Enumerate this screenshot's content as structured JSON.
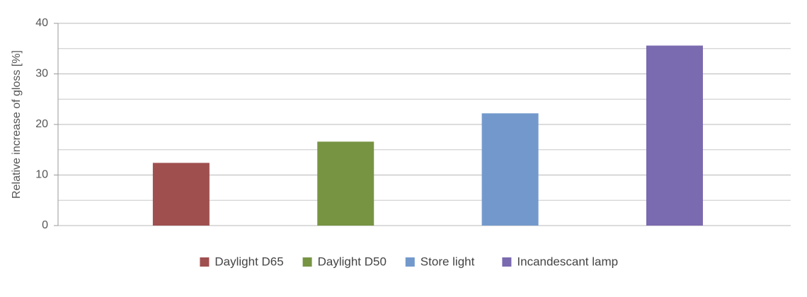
{
  "chart_data": {
    "type": "bar",
    "y_label": "Relative increase of gloss [%]",
    "categories": [
      null
    ],
    "series": [
      {
        "name": "Daylight D65",
        "color": "#a04f4f",
        "values": [
          12.4
        ]
      },
      {
        "name": "Daylight D50",
        "color": "#779443",
        "values": [
          16.6
        ]
      },
      {
        "name": "Store light",
        "color": "#7399cc",
        "values": [
          22.2
        ]
      },
      {
        "name": "Incandescant lamp",
        "color": "#7a6aaf",
        "values": [
          35.6
        ]
      }
    ],
    "ylim": [
      0,
      40
    ],
    "yticks": [
      0,
      10,
      20,
      30,
      40
    ],
    "minor_yticks": [
      5,
      15,
      25,
      35
    ],
    "grid": true,
    "legend": "bottom"
  }
}
